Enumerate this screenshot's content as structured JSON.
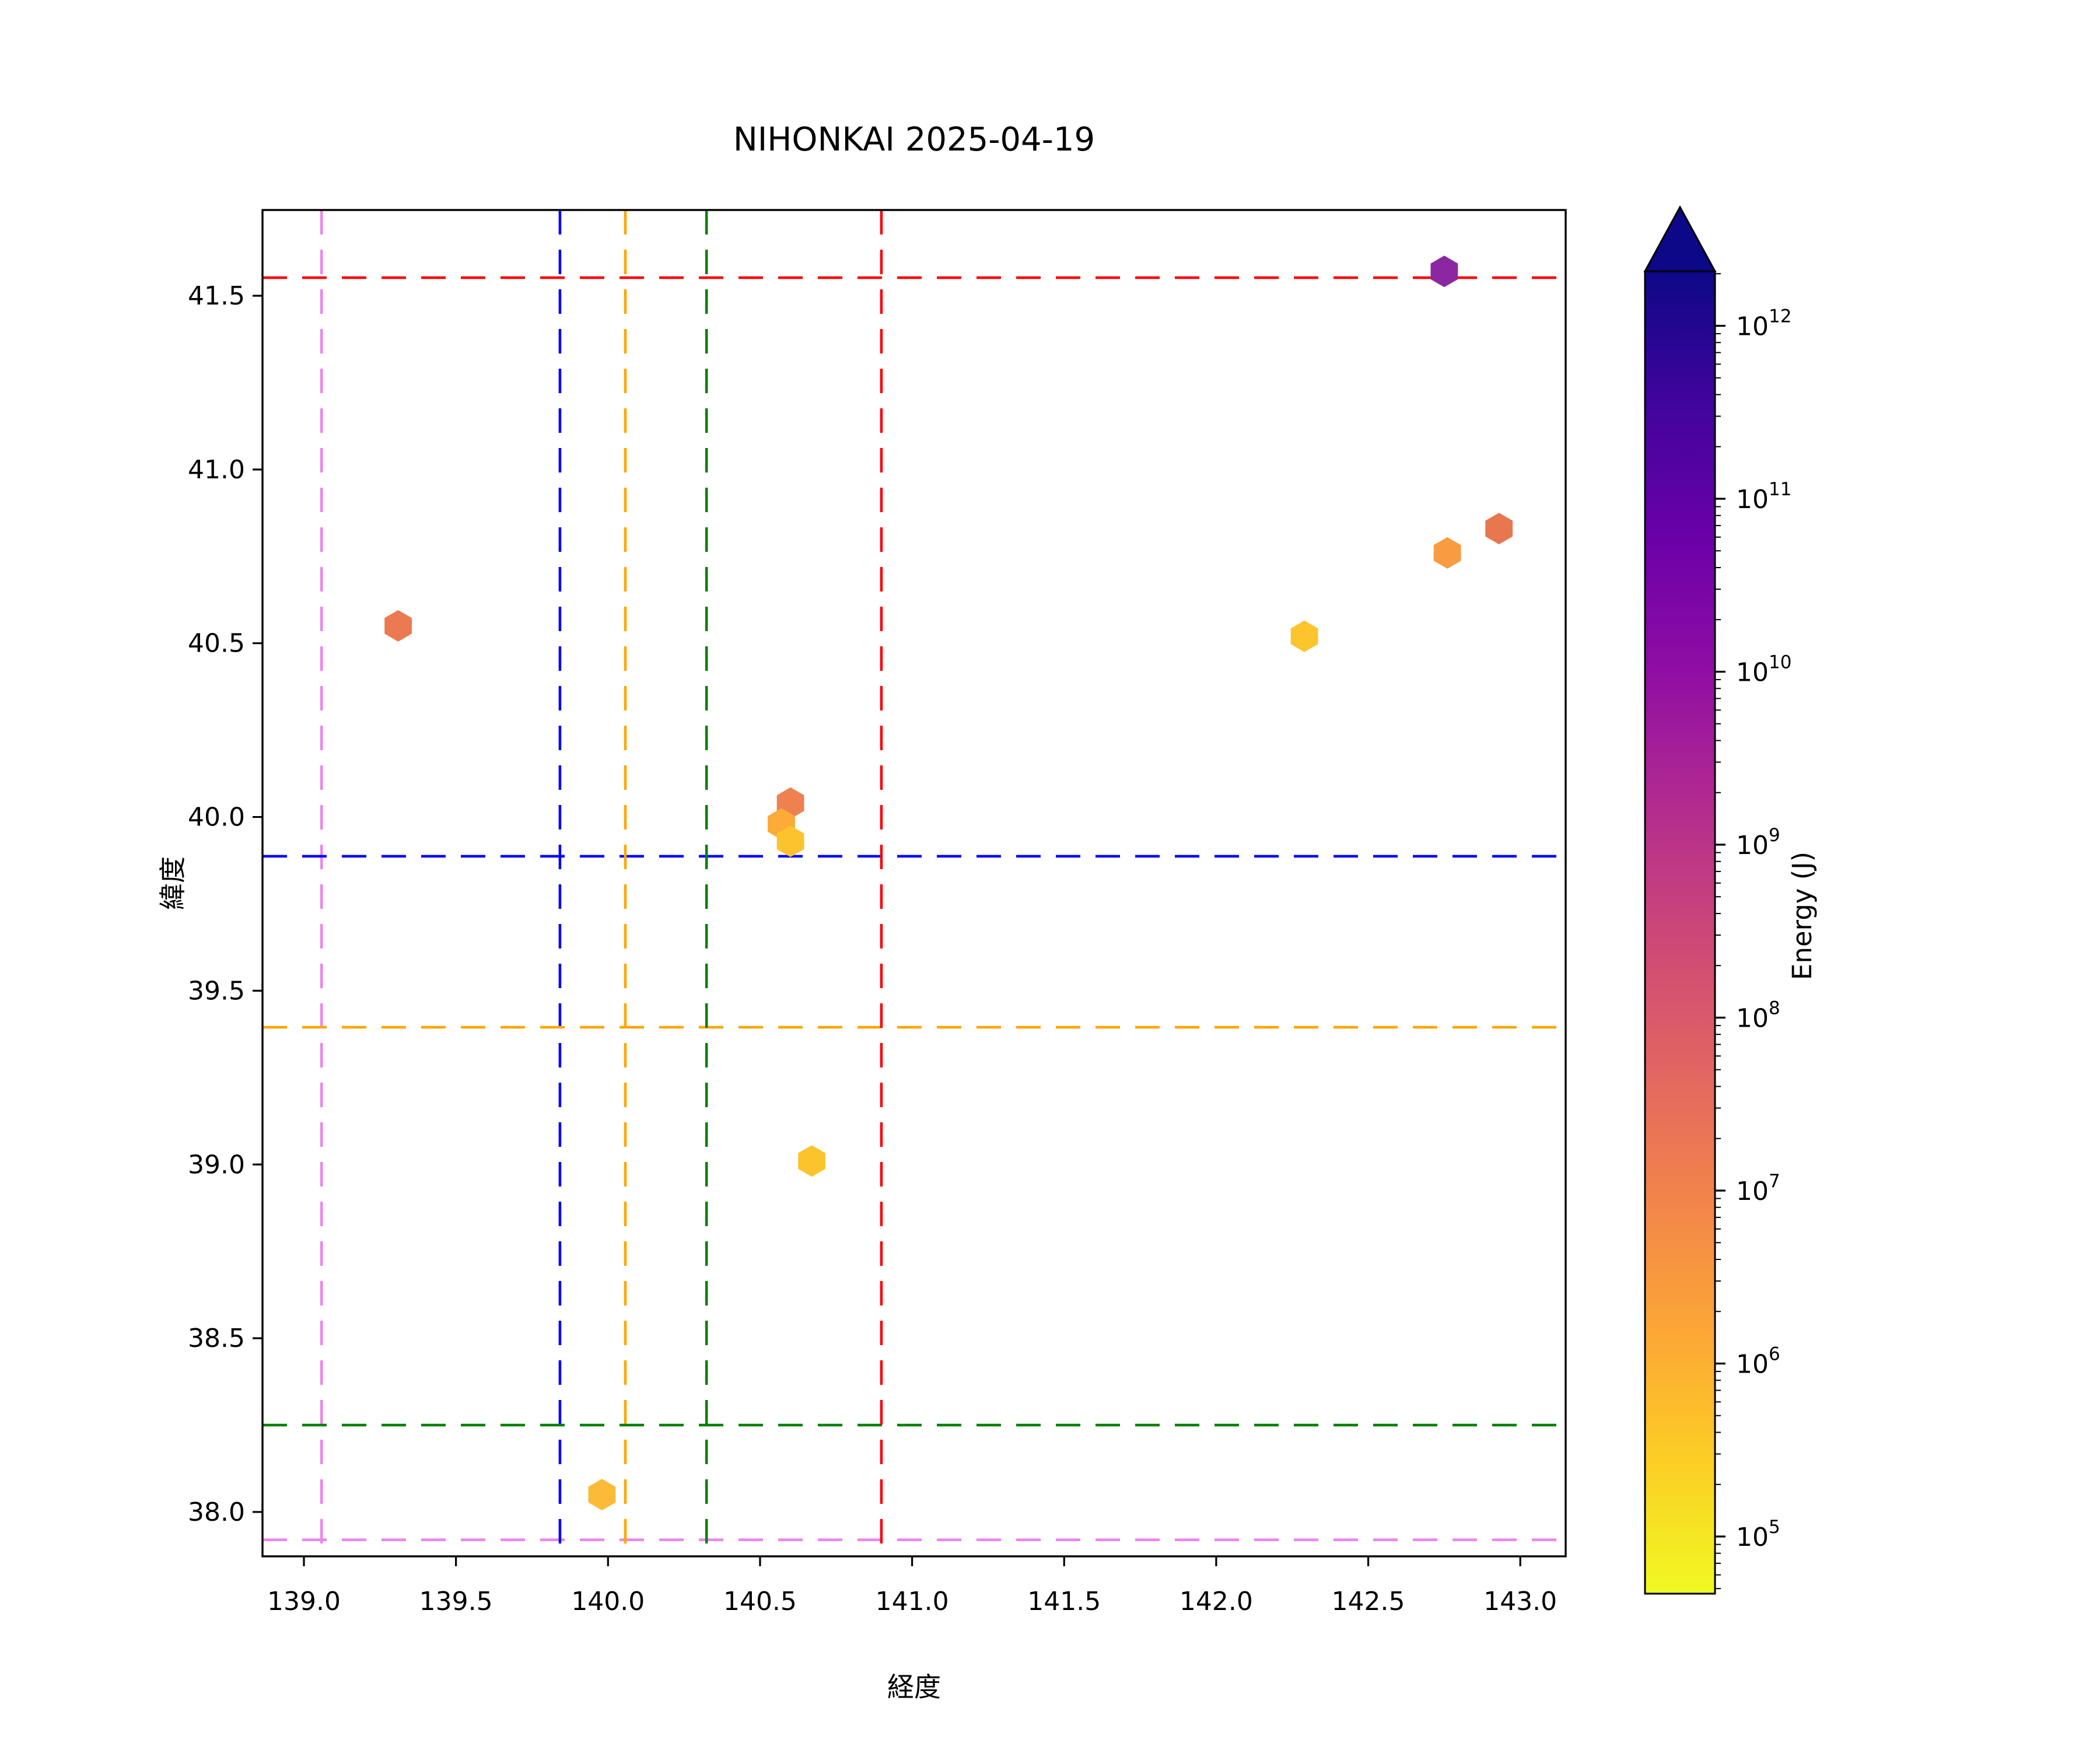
{
  "figure": {
    "title": "NIHONKAI 2025-04-19",
    "background_color": "#ffffff"
  },
  "chart_data": {
    "type": "scatter",
    "title": "NIHONKAI 2025-04-19",
    "xlabel": "経度",
    "ylabel": "緯度",
    "xlim": [
      138.86,
      143.15
    ],
    "ylim": [
      37.87,
      41.75
    ],
    "xticks": [
      139.0,
      139.5,
      140.0,
      140.5,
      141.0,
      141.5,
      142.0,
      142.5,
      143.0
    ],
    "yticks": [
      38.0,
      38.5,
      39.0,
      39.5,
      40.0,
      40.5,
      41.0,
      41.5
    ],
    "grid": false,
    "legend": null,
    "marker_shape": "hexagon",
    "points": [
      {
        "lon": 139.31,
        "lat": 40.55,
        "energy_j": 15000000.0,
        "color": "#ec7a50"
      },
      {
        "lon": 140.6,
        "lat": 40.04,
        "energy_j": 10000000.0,
        "color": "#ed8150"
      },
      {
        "lon": 140.57,
        "lat": 39.98,
        "energy_j": 1900000.0,
        "color": "#fcaa38"
      },
      {
        "lon": 140.6,
        "lat": 39.93,
        "energy_j": 600000.0,
        "color": "#fbc32d"
      },
      {
        "lon": 140.67,
        "lat": 39.01,
        "energy_j": 600000.0,
        "color": "#fbc42c"
      },
      {
        "lon": 139.98,
        "lat": 38.05,
        "energy_j": 800000.0,
        "color": "#fbbb38"
      },
      {
        "lon": 142.29,
        "lat": 40.52,
        "energy_j": 500000.0,
        "color": "#fcc52c"
      },
      {
        "lon": 142.76,
        "lat": 40.76,
        "energy_j": 2900000.0,
        "color": "#f89b41"
      },
      {
        "lon": 142.93,
        "lat": 40.83,
        "energy_j": 18000000.0,
        "color": "#e8764f"
      },
      {
        "lon": 142.75,
        "lat": 41.57,
        "energy_j": 12000000000.0,
        "color": "#8b27a2"
      }
    ],
    "crosshair_lines": [
      {
        "name": "violet",
        "color": "#ee82ee",
        "lon": 139.058,
        "lat": 37.92
      },
      {
        "name": "blue",
        "color": "#0000ff",
        "lon": 139.842,
        "lat": 39.887
      },
      {
        "name": "orange",
        "color": "#ffa500",
        "lon": 140.057,
        "lat": 39.395
      },
      {
        "name": "green",
        "color": "#008000",
        "lon": 140.324,
        "lat": 38.25
      },
      {
        "name": "red",
        "color": "#ff0000",
        "lon": 140.899,
        "lat": 41.552
      }
    ],
    "colorbar": {
      "label": "Energy (J)",
      "scale": "log",
      "extend": "max",
      "colormap": "plasma_r",
      "tick_exponents": [
        5,
        6,
        7,
        8,
        9,
        10,
        11,
        12
      ],
      "tick_values": [
        100000.0,
        1000000.0,
        10000000.0,
        100000000.0,
        1000000000.0,
        10000000000.0,
        100000000000.0,
        1000000000000.0
      ],
      "range": [
        47000.0,
        2000000000000.0
      ],
      "gradient_top_to_bottom": [
        "#0d0887",
        "#41049d",
        "#6a00a8",
        "#8f0da4",
        "#b12a90",
        "#cc4778",
        "#e16462",
        "#f2844b",
        "#fca636",
        "#fcce25",
        "#f0f921"
      ]
    }
  }
}
